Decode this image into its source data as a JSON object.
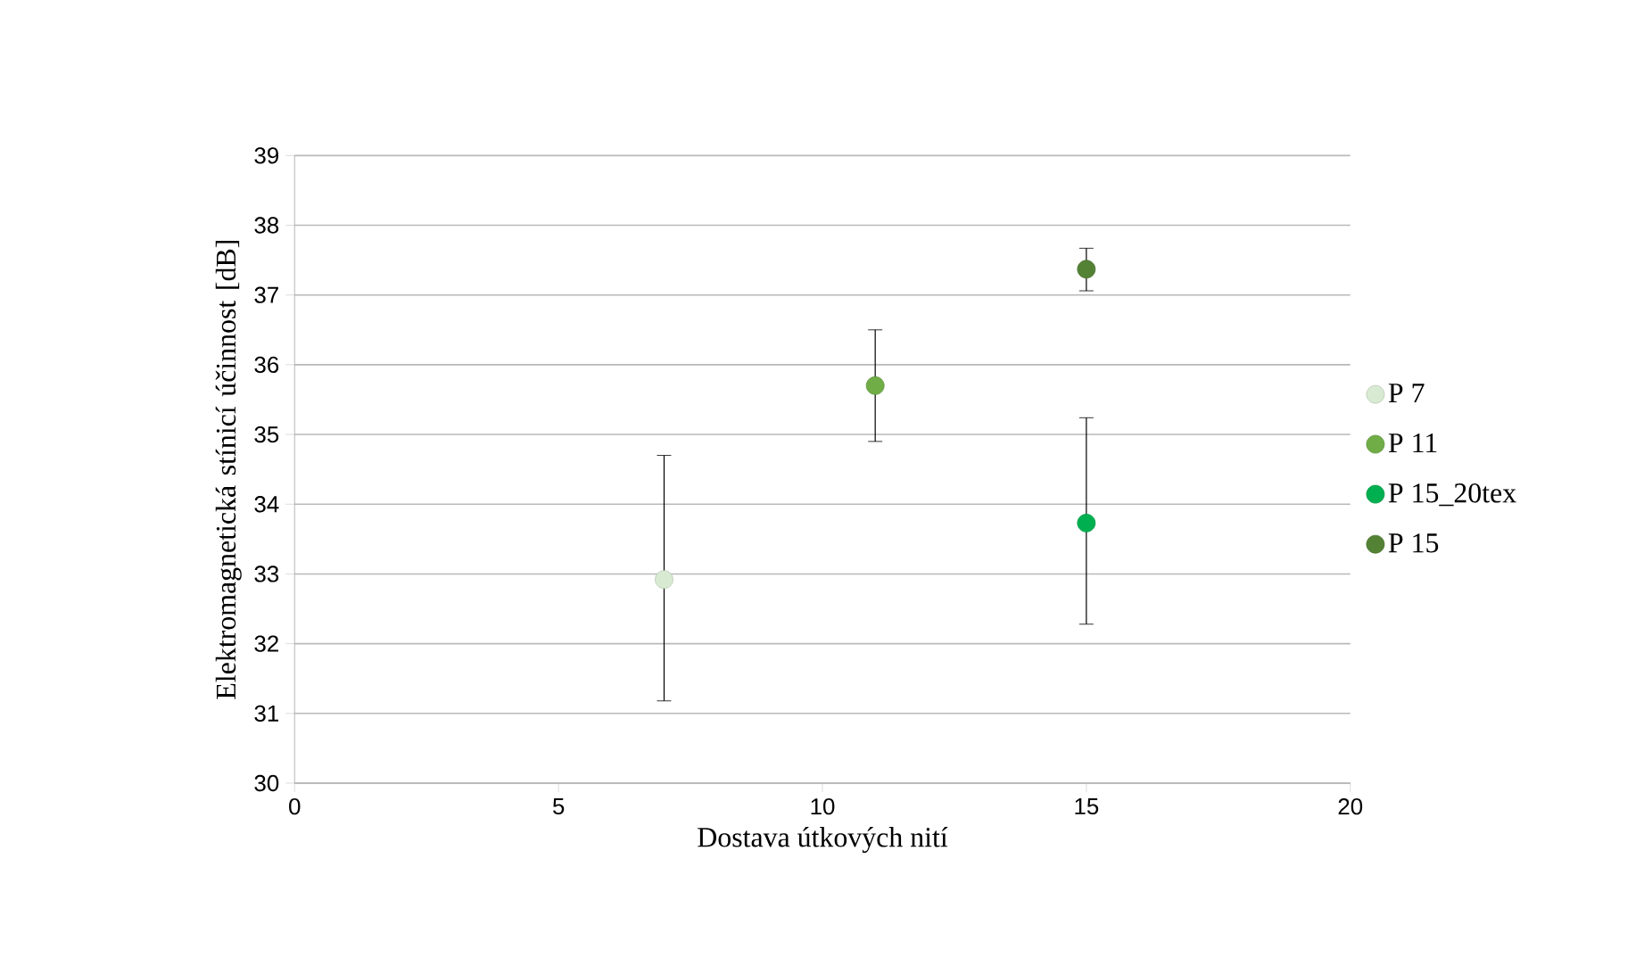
{
  "chart_data": {
    "type": "scatter",
    "xlabel": "Dostava útkových nití",
    "ylabel": "Elektromagnetická stínicí účinnost [dB]",
    "xlim": [
      0,
      20
    ],
    "xticks": [
      0,
      5,
      10,
      15,
      20
    ],
    "ylim": [
      30,
      39
    ],
    "yticks": [
      30,
      31,
      32,
      33,
      34,
      35,
      36,
      37,
      38,
      39
    ],
    "grid": "y",
    "legend": "right",
    "marker": "circle",
    "series": [
      {
        "name": "P 7",
        "color": "#d9ead3",
        "x": [
          7
        ],
        "values": [
          32.92
        ],
        "errors": [
          [
            31.18,
            34.7
          ]
        ]
      },
      {
        "name": "P 11",
        "color": "#70ad47",
        "x": [
          11
        ],
        "values": [
          35.7
        ],
        "errors": [
          [
            34.9,
            36.5
          ]
        ]
      },
      {
        "name": "P 15_20tex",
        "color": "#00b050",
        "x": [
          15
        ],
        "values": [
          33.73
        ],
        "errors": [
          [
            32.28,
            35.24
          ]
        ]
      },
      {
        "name": "P 15",
        "color": "#548235",
        "x": [
          15
        ],
        "values": [
          37.37
        ],
        "errors": [
          [
            37.06,
            37.67
          ]
        ]
      }
    ]
  }
}
